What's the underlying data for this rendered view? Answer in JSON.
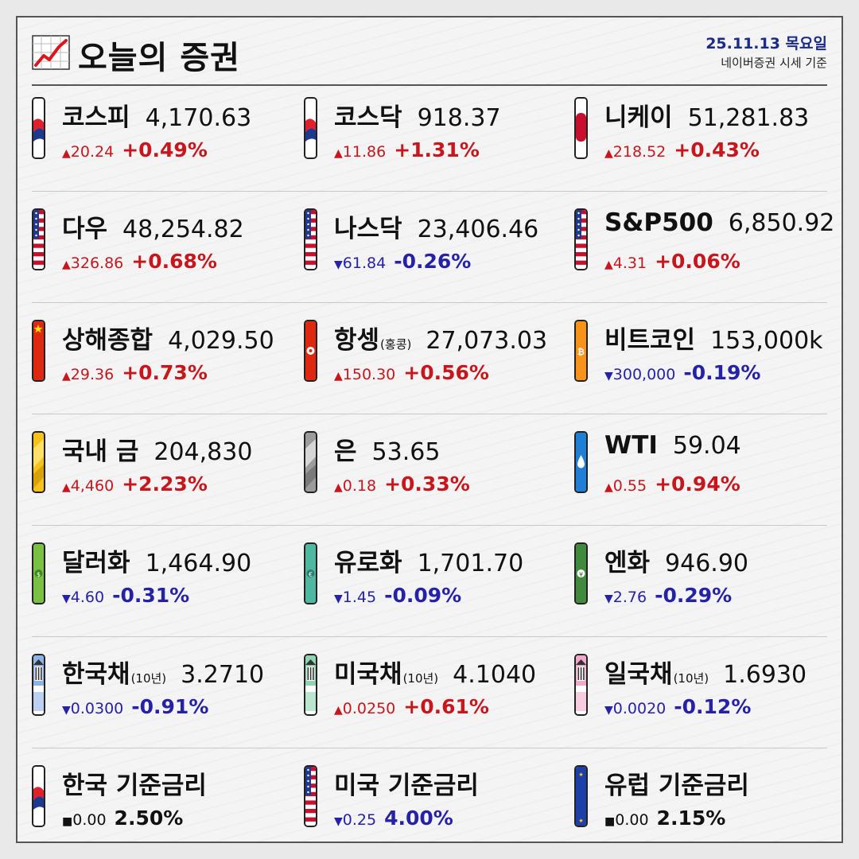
{
  "header": {
    "title": "오늘의 증권",
    "date": "25.11.13 목요일",
    "source": "네이버증권 시세 기준"
  },
  "items": [
    {
      "name": "코스피",
      "sub": "",
      "value": "4,170.63",
      "dir": "up",
      "arrow": "▲",
      "change": "20.24",
      "pct": "+0.49%",
      "badge": "korea"
    },
    {
      "name": "코스닥",
      "sub": "",
      "value": "918.37",
      "dir": "up",
      "arrow": "▲",
      "change": "11.86",
      "pct": "+1.31%",
      "badge": "korea"
    },
    {
      "name": "니케이",
      "sub": "",
      "value": "51,281.83",
      "dir": "up",
      "arrow": "▲",
      "change": "218.52",
      "pct": "+0.43%",
      "badge": "japan"
    },
    {
      "name": "다우",
      "sub": "",
      "value": "48,254.82",
      "dir": "up",
      "arrow": "▲",
      "change": "326.86",
      "pct": "+0.68%",
      "badge": "usa"
    },
    {
      "name": "나스닥",
      "sub": "",
      "value": "23,406.46",
      "dir": "down",
      "arrow": "▼",
      "change": "61.84",
      "pct": "-0.26%",
      "badge": "usa"
    },
    {
      "name": "S&P500",
      "sub": "",
      "value": "6,850.92",
      "dir": "up",
      "arrow": "▲",
      "change": "4.31",
      "pct": "+0.06%",
      "badge": "usa"
    },
    {
      "name": "상해종합",
      "sub": "",
      "value": "4,029.50",
      "dir": "up",
      "arrow": "▲",
      "change": "29.36",
      "pct": "+0.73%",
      "badge": "china"
    },
    {
      "name": "항셍",
      "sub": "(홍콩)",
      "value": "27,073.03",
      "dir": "up",
      "arrow": "▲",
      "change": "150.30",
      "pct": "+0.56%",
      "badge": "hongkong"
    },
    {
      "name": "비트코인",
      "sub": "",
      "value": "153,000k",
      "dir": "down",
      "arrow": "▼",
      "change": "300,000",
      "pct": "-0.19%",
      "badge": "bitcoin"
    },
    {
      "name": "국내 금",
      "sub": "",
      "value": "204,830",
      "dir": "up",
      "arrow": "▲",
      "change": "4,460",
      "pct": "+2.23%",
      "badge": "gold"
    },
    {
      "name": "은",
      "sub": "",
      "value": "53.65",
      "dir": "up",
      "arrow": "▲",
      "change": "0.18",
      "pct": "+0.33%",
      "badge": "silver"
    },
    {
      "name": "WTI",
      "sub": "",
      "value": "59.04",
      "dir": "up",
      "arrow": "▲",
      "change": "0.55",
      "pct": "+0.94%",
      "badge": "oil"
    },
    {
      "name": "달러화",
      "sub": "",
      "value": "1,464.90",
      "dir": "down",
      "arrow": "▼",
      "change": "4.60",
      "pct": "-0.31%",
      "badge": "dollar"
    },
    {
      "name": "유로화",
      "sub": "",
      "value": "1,701.70",
      "dir": "down",
      "arrow": "▼",
      "change": "1.45",
      "pct": "-0.09%",
      "badge": "euro"
    },
    {
      "name": "엔화",
      "sub": "",
      "value": "946.90",
      "dir": "down",
      "arrow": "▼",
      "change": "2.76",
      "pct": "-0.29%",
      "badge": "yen"
    },
    {
      "name": "한국채",
      "sub": "(10년)",
      "value": "3.2710",
      "dir": "down",
      "arrow": "▼",
      "change": "0.0300",
      "pct": "-0.91%",
      "badge": "bond-blue"
    },
    {
      "name": "미국채",
      "sub": "(10년)",
      "value": "4.1040",
      "dir": "up",
      "arrow": "▲",
      "change": "0.0250",
      "pct": "+0.61%",
      "badge": "bond-green"
    },
    {
      "name": "일국채",
      "sub": "(10년)",
      "value": "1.6930",
      "dir": "down",
      "arrow": "▼",
      "change": "0.0020",
      "pct": "-0.12%",
      "badge": "bond-pink"
    },
    {
      "name": "한국 기준금리",
      "sub": "",
      "value": "",
      "dir": "flat",
      "arrow": "■",
      "change": "0.00",
      "pct": "2.50%",
      "badge": "korea"
    },
    {
      "name": "미국 기준금리",
      "sub": "",
      "value": "",
      "dir": "down",
      "arrow": "▼",
      "change": "0.25",
      "pct": "4.00%",
      "badge": "usa"
    },
    {
      "name": "유럽 기준금리",
      "sub": "",
      "value": "",
      "dir": "flat",
      "arrow": "■",
      "change": "0.00",
      "pct": "2.15%",
      "badge": "eu"
    }
  ]
}
